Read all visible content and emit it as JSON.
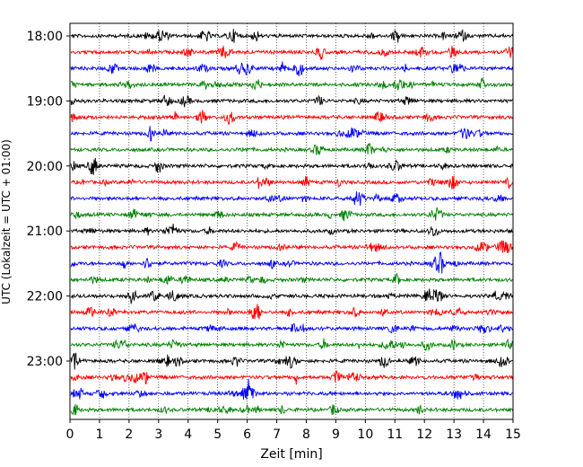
{
  "chart_data": {
    "type": "line",
    "title": "",
    "xlabel": "Zeit  [min]",
    "ylabel": "UTC (Lokalzeit = UTC + 01:00)",
    "xlim": [
      0,
      15
    ],
    "x_ticks": [
      "0",
      "1",
      "2",
      "3",
      "4",
      "5",
      "6",
      "7",
      "8",
      "9",
      "10",
      "11",
      "12",
      "13",
      "14",
      "15"
    ],
    "y_ticks": [
      "18:00",
      "19:00",
      "20:00",
      "21:00",
      "22:00",
      "23:00"
    ],
    "grid": "vertical dotted at each minute",
    "trace_colors": [
      "#000000",
      "#ff0000",
      "#0000ff",
      "#008000"
    ],
    "rows": [
      {
        "time": "18:00",
        "color": "#000000"
      },
      {
        "time": "18:15",
        "color": "#ff0000"
      },
      {
        "time": "18:30",
        "color": "#0000ff"
      },
      {
        "time": "18:45",
        "color": "#008000"
      },
      {
        "time": "19:00",
        "color": "#000000"
      },
      {
        "time": "19:15",
        "color": "#ff0000"
      },
      {
        "time": "19:30",
        "color": "#0000ff"
      },
      {
        "time": "19:45",
        "color": "#008000"
      },
      {
        "time": "20:00",
        "color": "#000000"
      },
      {
        "time": "20:15",
        "color": "#ff0000"
      },
      {
        "time": "20:30",
        "color": "#0000ff"
      },
      {
        "time": "20:45",
        "color": "#008000"
      },
      {
        "time": "21:00",
        "color": "#000000"
      },
      {
        "time": "21:15",
        "color": "#ff0000"
      },
      {
        "time": "21:30",
        "color": "#0000ff"
      },
      {
        "time": "21:45",
        "color": "#008000"
      },
      {
        "time": "22:00",
        "color": "#000000"
      },
      {
        "time": "22:15",
        "color": "#ff0000"
      },
      {
        "time": "22:30",
        "color": "#0000ff"
      },
      {
        "time": "22:45",
        "color": "#008000"
      },
      {
        "time": "23:00",
        "color": "#000000"
      },
      {
        "time": "23:15",
        "color": "#ff0000"
      },
      {
        "time": "23:30",
        "color": "#0000ff"
      },
      {
        "time": "23:45",
        "color": "#008000"
      }
    ]
  }
}
